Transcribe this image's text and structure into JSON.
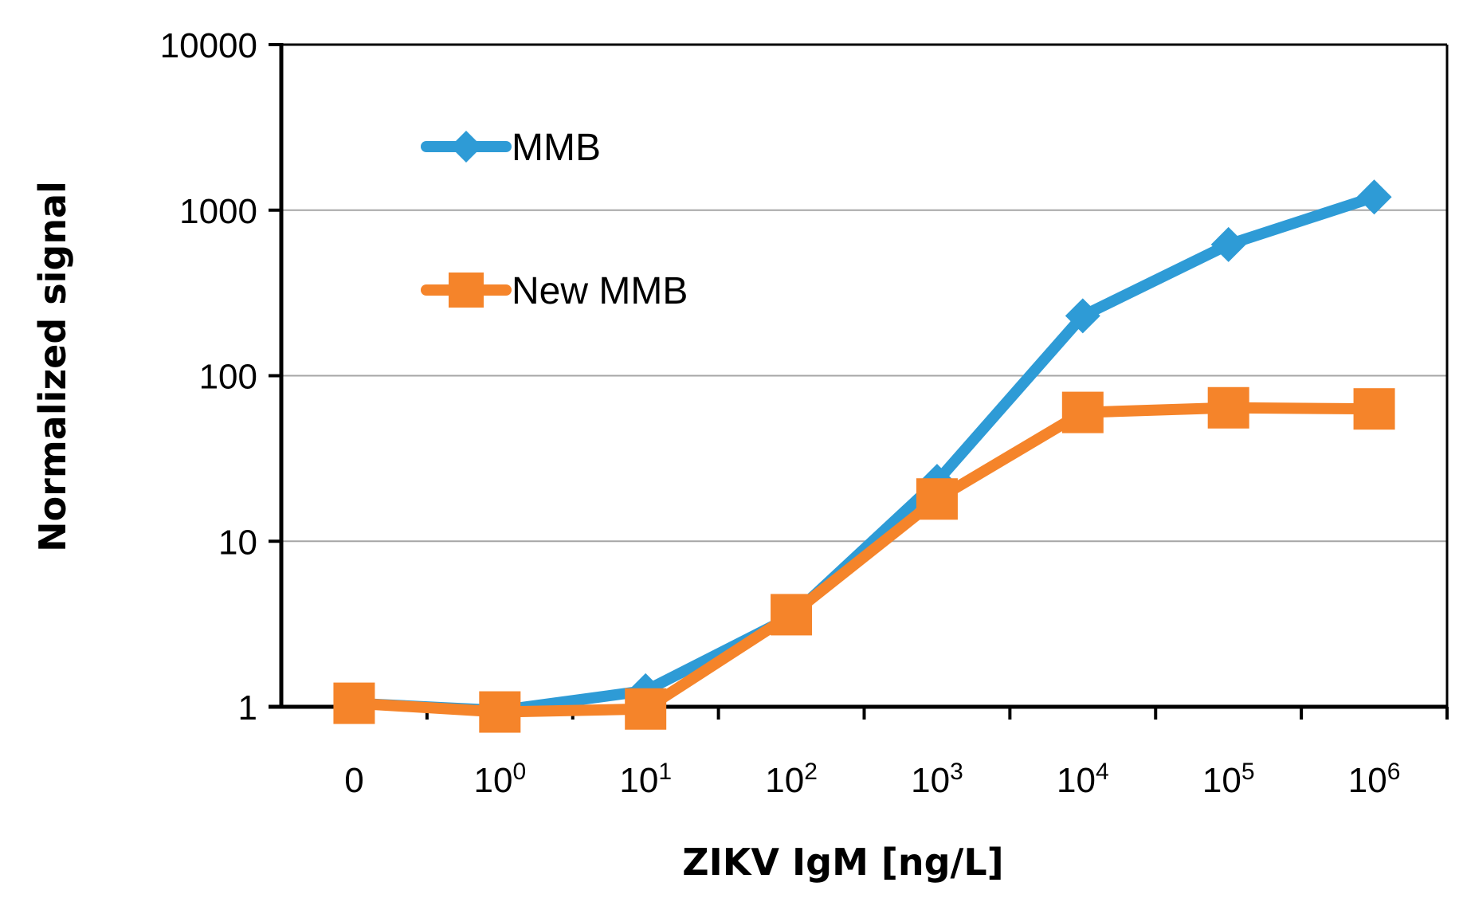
{
  "chart_data": {
    "type": "line",
    "title": "",
    "xlabel": "ZIKV IgM [ng/L]",
    "ylabel": "Normalized signal",
    "y_scale": "log",
    "ylim": [
      1,
      10000
    ],
    "y_ticks": [
      {
        "value": 1,
        "label": "1"
      },
      {
        "value": 10,
        "label": "10"
      },
      {
        "value": 100,
        "label": "100"
      },
      {
        "value": 1000,
        "label": "1000"
      },
      {
        "value": 10000,
        "label": "10000"
      }
    ],
    "grid": true,
    "legend_position": "top-left",
    "categories": [
      {
        "base": "0",
        "exp": ""
      },
      {
        "base": "10",
        "exp": "0"
      },
      {
        "base": "10",
        "exp": "1"
      },
      {
        "base": "10",
        "exp": "2"
      },
      {
        "base": "10",
        "exp": "3"
      },
      {
        "base": "10",
        "exp": "4"
      },
      {
        "base": "10",
        "exp": "5"
      },
      {
        "base": "10",
        "exp": "6"
      }
    ],
    "series": [
      {
        "name": "MMB",
        "color": "#2e9bd6",
        "marker": "diamond",
        "values": [
          1.05,
          0.95,
          1.25,
          3.5,
          23,
          230,
          620,
          1200
        ]
      },
      {
        "name": "New MMB",
        "color": "#f5842a",
        "marker": "square",
        "values": [
          1.05,
          0.93,
          0.97,
          3.6,
          18,
          60,
          64,
          63
        ]
      }
    ]
  }
}
